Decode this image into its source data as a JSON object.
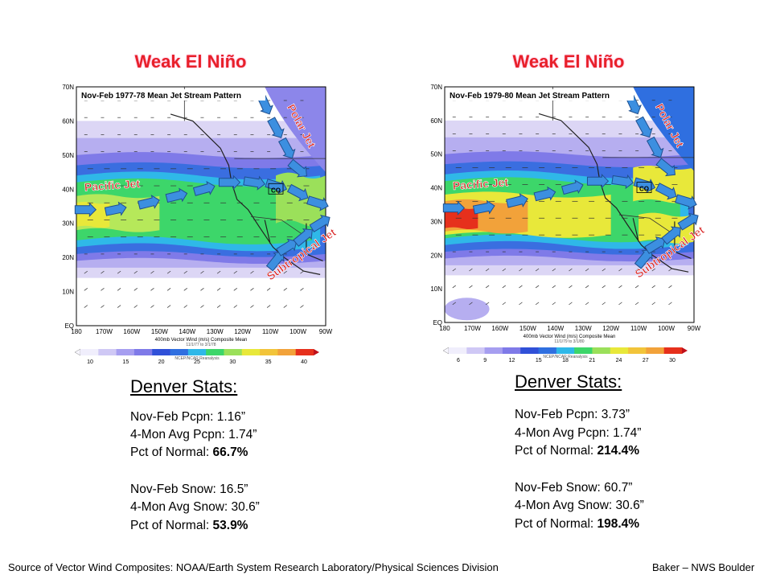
{
  "panels": [
    {
      "title": "Weak El Niño",
      "map_title": "Nov-Feb 1977-78 Mean Jet Stream Pattern",
      "pacific": "Pacific Jet",
      "polar": "Polar Jet",
      "subtropical": "Subtropical Jet",
      "state": "CO",
      "lats": [
        "70N",
        "60N",
        "50N",
        "40N",
        "30N",
        "20N",
        "10N",
        "EQ"
      ],
      "lons": [
        "180",
        "170W",
        "160W",
        "150W",
        "140W",
        "130W",
        "120W",
        "110W",
        "100W",
        "90W"
      ],
      "caption": "400mb Vector Wind (m/s) Composite Mean",
      "dates": "11/1/77 to 3/1/78",
      "credit": "NCEP/NCAR Reanalysis",
      "colorbar": [
        "10",
        "15",
        "20",
        "25",
        "30",
        "35",
        "40"
      ],
      "stats_heading": "Denver Stats:",
      "stats": [
        {
          "label": "Nov-Feb Pcpn:",
          "value": "1.16”",
          "bold": false
        },
        {
          "label": "4-Mon Avg Pcpn:",
          "value": "1.74”",
          "bold": false
        },
        {
          "label": "Pct of Normal:",
          "value": "66.7%",
          "bold": true
        },
        {
          "label": "Nov-Feb Snow:",
          "value": "16.5”",
          "bold": false
        },
        {
          "label": "4-Mon Avg Snow:",
          "value": "30.6”",
          "bold": false
        },
        {
          "label": "Pct of Normal:",
          "value": "53.9%",
          "bold": true
        }
      ]
    },
    {
      "title": "Weak El Niño",
      "map_title": "Nov-Feb 1979-80 Mean Jet Stream Pattern",
      "pacific": "Pacific Jet",
      "polar": "Polar Jet",
      "subtropical": "Subtropical Jet",
      "state": "CO",
      "lats": [
        "70N",
        "60N",
        "50N",
        "40N",
        "30N",
        "20N",
        "10N",
        "EQ"
      ],
      "lons": [
        "180",
        "170W",
        "160W",
        "150W",
        "140W",
        "130W",
        "120W",
        "110W",
        "100W",
        "90W"
      ],
      "caption": "400mb Vector Wind (m/s) Composite Mean",
      "dates": "11/1/79 to 3/1/80",
      "credit": "NCEP/NCAR Reanalysis",
      "colorbar": [
        "6",
        "9",
        "12",
        "15",
        "18",
        "21",
        "24",
        "27",
        "30"
      ],
      "stats_heading": "Denver Stats:",
      "stats": [
        {
          "label": "Nov-Feb Pcpn:",
          "value": "3.73”",
          "bold": false
        },
        {
          "label": "4-Mon Avg Pcpn:",
          "value": "1.74”",
          "bold": false
        },
        {
          "label": "Pct of Normal:",
          "value": "214.4%",
          "bold": true
        },
        {
          "label": "Nov-Feb Snow:",
          "value": "60.7”",
          "bold": false
        },
        {
          "label": "4-Mon Avg Snow:",
          "value": "30.6”",
          "bold": false
        },
        {
          "label": "Pct of Normal:",
          "value": "198.4%",
          "bold": true
        }
      ]
    }
  ],
  "footer": {
    "source": "Source of Vector Wind Composites: NOAA/Earth System Research Laboratory/Physical Sciences Division",
    "author": "Baker – NWS Boulder"
  }
}
